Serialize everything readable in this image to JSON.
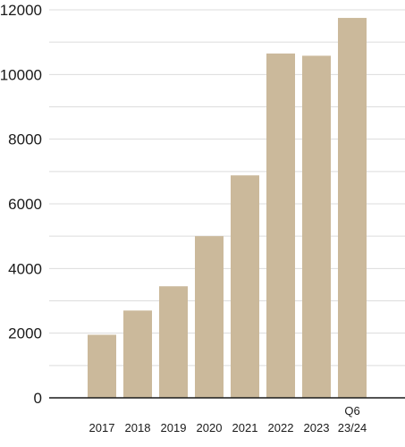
{
  "chart_data": {
    "type": "bar",
    "categories": [
      "2017",
      "2018",
      "2019",
      "2020",
      "2021",
      "2022",
      "2023",
      "Q6 23/24"
    ],
    "category_lines": [
      [
        "2017"
      ],
      [
        "2018"
      ],
      [
        "2019"
      ],
      [
        "2020"
      ],
      [
        "2021"
      ],
      [
        "2022"
      ],
      [
        "2023"
      ],
      [
        "Q6",
        "23/24"
      ]
    ],
    "values": [
      1950,
      2700,
      3450,
      5000,
      6880,
      10650,
      10580,
      11750
    ],
    "yticks": [
      0,
      2000,
      4000,
      6000,
      8000,
      10000,
      12000
    ],
    "ylim": [
      0,
      12000
    ],
    "grid": true,
    "bar_color": "#cbb99b",
    "grid_color": "#dcdcdc",
    "axis_color": "#1a1a1a"
  }
}
